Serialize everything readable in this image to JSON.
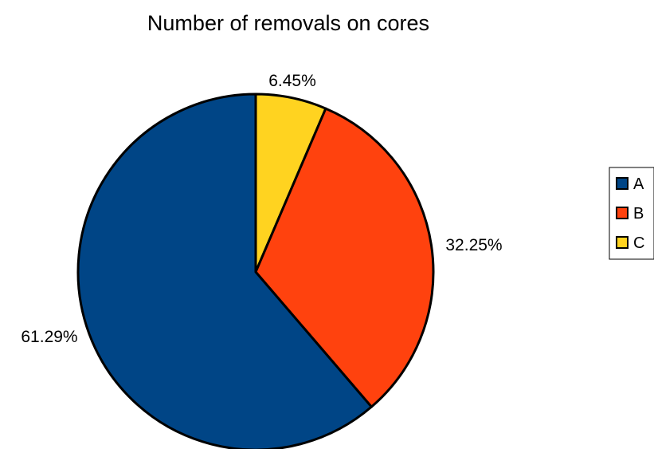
{
  "chart_data": {
    "type": "pie",
    "title": "Number of removals on cores",
    "categories": [
      "A",
      "B",
      "C"
    ],
    "values": [
      61.29,
      32.25,
      6.45
    ],
    "labels": [
      "61.29%",
      "32.25%",
      "6.45%"
    ],
    "colors": [
      "#004586",
      "#ff420e",
      "#ffd320"
    ],
    "legend_position": "right",
    "start_angle": "12 o'clock",
    "direction": "clockwise from C"
  }
}
